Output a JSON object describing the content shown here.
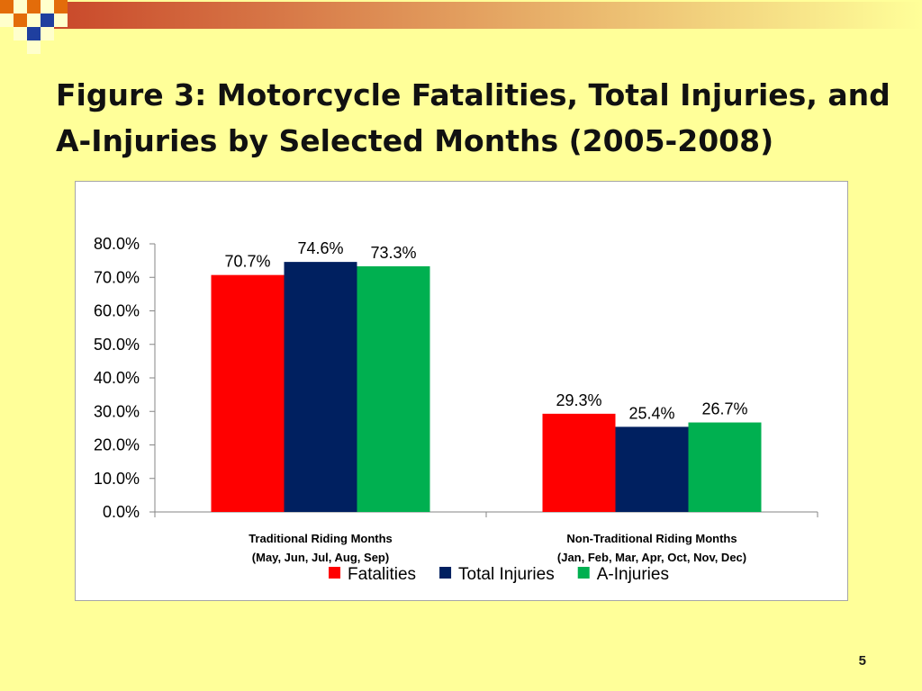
{
  "slide": {
    "title": "Figure 3: Motorcycle Fatalities, Total Injuries, and A-Injuries by Selected Months (2005-2008)",
    "page_number": "5"
  },
  "colors": {
    "background": "#ffff99",
    "fatalities": "#ff0000",
    "total_injuries": "#002060",
    "a_injuries": "#00b050"
  },
  "chart_data": {
    "type": "bar",
    "title": "",
    "xlabel": "",
    "ylabel": "",
    "ylim": [
      0,
      80
    ],
    "yticks": [
      "0.0%",
      "10.0%",
      "20.0%",
      "30.0%",
      "40.0%",
      "50.0%",
      "60.0%",
      "70.0%",
      "80.0%"
    ],
    "categories": [
      [
        "Traditional Riding Months",
        "(May, Jun, Jul, Aug, Sep)"
      ],
      [
        "Non-Traditional Riding Months",
        "(Jan, Feb, Mar, Apr, Oct, Nov, Dec)"
      ]
    ],
    "series": [
      {
        "name": "Fatalities",
        "color": "#ff0000",
        "values": [
          70.7,
          29.3
        ],
        "labels": [
          "70.7%",
          "29.3%"
        ]
      },
      {
        "name": "Total Injuries",
        "color": "#002060",
        "values": [
          74.6,
          25.4
        ],
        "labels": [
          "74.6%",
          "25.4%"
        ]
      },
      {
        "name": "A-Injuries",
        "color": "#00b050",
        "values": [
          73.3,
          26.7
        ],
        "labels": [
          "73.3%",
          "26.7%"
        ]
      }
    ],
    "grid": false,
    "legend": "bottom"
  }
}
